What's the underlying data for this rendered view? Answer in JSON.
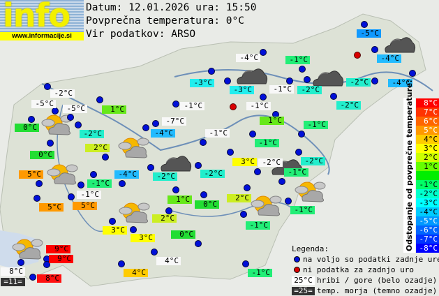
{
  "logo": {
    "text": "info",
    "url": "www.informacije.si"
  },
  "header": {
    "date_line": "Datum: 12.01.2026 ura: 15:50",
    "avg_line": "Povprečna temperatura: 0°C",
    "source_line": "Vir podatkov: ARSO"
  },
  "colors": {
    "white": "#f8f8f8",
    "dark": "#333333",
    "c9": "#ff0000",
    "c8": "#ff1010",
    "c5": "#ff9900",
    "c4": "#ffcc00",
    "c3": "#ffff00",
    "c2": "#ccee22",
    "c1": "#66e81a",
    "c0": "#22dd33",
    "cm1": "#22ee77",
    "cm2": "#22eecc",
    "cm3": "#22eeee",
    "cm4": "#22bbff",
    "cm5": "#1199ff",
    "dot_ok": "#0010d8",
    "dot_missing": "#d80000"
  },
  "stations": [
    {
      "temp": "-2°C",
      "bg": "white"
    },
    {
      "temp": "-5°C",
      "bg": "white"
    },
    {
      "temp": "-5°C",
      "bg": "white"
    },
    {
      "temp": "1°C",
      "bg": "c1"
    },
    {
      "temp": "-1°C",
      "bg": "white"
    },
    {
      "temp": "0°C",
      "bg": "c0"
    },
    {
      "temp": "-2°C",
      "bg": "cm2"
    },
    {
      "temp": "-7°C",
      "bg": "white"
    },
    {
      "temp": "-4°C",
      "bg": "cm4"
    },
    {
      "temp": "-1°C",
      "bg": "white"
    },
    {
      "temp": "2°C",
      "bg": "c2"
    },
    {
      "temp": "0°C",
      "bg": "c0"
    },
    {
      "temp": "5°C",
      "bg": "c5"
    },
    {
      "temp": "-1°C",
      "bg": "cm1"
    },
    {
      "temp": "-4°C",
      "bg": "cm4"
    },
    {
      "temp": "-2°C",
      "bg": "cm2"
    },
    {
      "temp": "-2°C",
      "bg": "cm2"
    },
    {
      "temp": "-1°C",
      "bg": "white"
    },
    {
      "temp": "1°C",
      "bg": "c1"
    },
    {
      "temp": "0°C",
      "bg": "c0"
    },
    {
      "temp": "5°C",
      "bg": "c5"
    },
    {
      "temp": "5°C",
      "bg": "c5"
    },
    {
      "temp": "2°C",
      "bg": "c2"
    },
    {
      "temp": "3°C",
      "bg": "c3"
    },
    {
      "temp": "3°C",
      "bg": "c3"
    },
    {
      "temp": "0°C",
      "bg": "c0"
    },
    {
      "temp": "9°C",
      "bg": "c9"
    },
    {
      "temp": "9°C",
      "bg": "c9"
    },
    {
      "temp": "4°C",
      "bg": "white"
    },
    {
      "temp": "8°C",
      "bg": "white"
    },
    {
      "temp": "=11=",
      "bg": "dark"
    },
    {
      "temp": "8°C",
      "bg": "c8"
    },
    {
      "temp": "4°C",
      "bg": "c4"
    },
    {
      "temp": "-5°C",
      "bg": "cm5"
    },
    {
      "temp": "-4°C",
      "bg": "white"
    },
    {
      "temp": "-1°C",
      "bg": "cm1"
    },
    {
      "temp": "-4°C",
      "bg": "cm4"
    },
    {
      "temp": "-3°C",
      "bg": "cm3"
    },
    {
      "temp": "-3°C",
      "bg": "cm3"
    },
    {
      "temp": "-1°C",
      "bg": "white"
    },
    {
      "temp": "-2°C",
      "bg": "cm2"
    },
    {
      "temp": "-2°C",
      "bg": "cm2"
    },
    {
      "temp": "-4°C",
      "bg": "cm4"
    },
    {
      "temp": "-1°C",
      "bg": "white"
    },
    {
      "temp": "-2°C",
      "bg": "cm2"
    },
    {
      "temp": "1°C",
      "bg": "c1"
    },
    {
      "temp": "-1°C",
      "bg": "cm1"
    },
    {
      "temp": "-1°C",
      "bg": "cm1"
    },
    {
      "temp": "3°C",
      "bg": "c3"
    },
    {
      "temp": "-2°C",
      "bg": "white"
    },
    {
      "temp": "-2°C",
      "bg": "cm2"
    },
    {
      "temp": "-1°C",
      "bg": "cm1"
    },
    {
      "temp": "2°C",
      "bg": "c2"
    },
    {
      "temp": "-1°C",
      "bg": "cm1"
    },
    {
      "temp": "-1°C",
      "bg": "cm1"
    },
    {
      "temp": "-1°C",
      "bg": "cm1"
    }
  ],
  "station_dots": [
    "ok",
    "ok",
    "ok",
    "ok",
    "ok",
    "ok",
    "ok",
    "ok",
    "ok",
    "ok",
    "ok",
    "ok",
    "ok",
    "ok",
    "ok",
    "ok",
    "ok",
    "ok",
    "ok",
    "ok",
    "ok",
    "ok",
    "ok",
    "ok",
    "ok",
    "ok",
    "ok",
    "ok",
    "ok",
    "ok",
    "ok",
    "ok",
    "ok",
    "ok",
    "ok",
    "ok",
    "ok",
    "missing",
    "ok",
    "ok",
    "ok",
    "ok",
    "ok",
    "ok",
    "ok",
    "missing",
    "ok",
    "ok",
    "ok",
    "ok",
    "ok",
    "ok",
    "ok",
    "ok",
    "ok",
    "ok",
    "ok"
  ],
  "weather_icons": [
    "sun-cloud-icon",
    "sun-cloud-icon",
    "sun-cloud-icon",
    "sun-cloud-icon",
    "sun-cloud-icon",
    "dark-cloud-icon",
    "dark-cloud-icon",
    "dark-cloud-icon",
    "dark-cloud-icon",
    "dark-cloud-icon",
    "sun-cloud-icon",
    "sun-cloud-icon",
    "sun-cloud-icon"
  ],
  "scale": {
    "title": "Odstopanje od povprečne temperature:",
    "rows": [
      {
        "label": "8°C",
        "color": "#ff0000"
      },
      {
        "label": "7°C",
        "color": "#ff3300"
      },
      {
        "label": "6°C",
        "color": "#ff6600"
      },
      {
        "label": "5°C",
        "color": "#ff9900"
      },
      {
        "label": "4°C",
        "color": "#ffcc00"
      },
      {
        "label": "3°C",
        "color": "#ffff00"
      },
      {
        "label": "2°C",
        "color": "#ccff00"
      },
      {
        "label": "1°C",
        "color": "#66ff00"
      },
      {
        "label": "",
        "color": "#00ee00"
      },
      {
        "label": "-1°C",
        "color": "#00ff66"
      },
      {
        "label": "-2°C",
        "color": "#00ffcc"
      },
      {
        "label": "-3°C",
        "color": "#00ffff"
      },
      {
        "label": "-4°C",
        "color": "#00ccff"
      },
      {
        "label": "-5°C",
        "color": "#0099ff"
      },
      {
        "label": "-6°C",
        "color": "#0066ff"
      },
      {
        "label": "-7°C",
        "color": "#0033ff"
      },
      {
        "label": "-8°C",
        "color": "#0000ff"
      }
    ]
  },
  "legend": {
    "title": "Legenda:",
    "ok": "na voljo so podatki zadnje ure",
    "missing": "ni podatka za zadnjo uro",
    "mountain_sample": "25°C",
    "mountain": "hribi / gore (belo ozadje)",
    "sea_sample": "=25=",
    "sea": "temp. morja (temno ozadje)"
  }
}
